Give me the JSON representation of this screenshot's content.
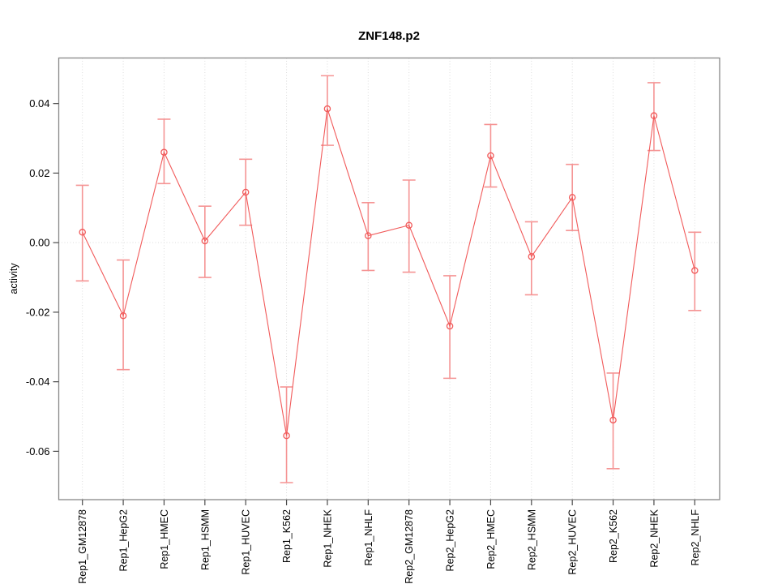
{
  "figure": {
    "background": "#ffffff"
  },
  "chart_data": {
    "type": "line",
    "title": "ZNF148.p2",
    "xlabel": "",
    "ylabel": "activity",
    "categories": [
      "Rep1_GM12878",
      "Rep1_HepG2",
      "Rep1_HMEC",
      "Rep1_HSMM",
      "Rep1_HUVEC",
      "Rep1_K562",
      "Rep1_NHEK",
      "Rep1_NHLF",
      "Rep2_GM12878",
      "Rep2_HepG2",
      "Rep2_HMEC",
      "Rep2_HSMM",
      "Rep2_HUVEC",
      "Rep2_K562",
      "Rep2_NHEK",
      "Rep2_NHLF"
    ],
    "series": [
      {
        "name": "activity",
        "marker": "open-circle",
        "values": [
          0.003,
          -0.021,
          0.026,
          0.0005,
          0.0145,
          -0.0555,
          0.0385,
          0.002,
          0.005,
          -0.024,
          0.025,
          -0.004,
          0.013,
          -0.051,
          0.0365,
          -0.008
        ],
        "ci_lower": [
          -0.011,
          -0.0365,
          0.017,
          -0.01,
          0.005,
          -0.069,
          0.028,
          -0.008,
          -0.0085,
          -0.039,
          0.016,
          -0.015,
          0.0035,
          -0.065,
          0.0265,
          -0.0195
        ],
        "ci_upper": [
          0.0165,
          -0.005,
          0.0355,
          0.0105,
          0.024,
          -0.0415,
          0.048,
          0.0115,
          0.018,
          -0.0095,
          0.034,
          0.006,
          0.0225,
          -0.0375,
          0.046,
          0.003
        ]
      }
    ],
    "y_ticks": [
      0.04,
      0.02,
      0,
      -0.02,
      -0.04,
      -0.06
    ],
    "y_tick_labels": [
      "0.04",
      "0.02",
      "0.00",
      "-0.02",
      "-0.04",
      "-0.06"
    ],
    "ylim": [
      -0.0739,
      0.0531
    ],
    "grid": "vertical dotted gridline at each category; horizontal dotted line at y=0",
    "legend": "none",
    "colors": {
      "line": "#f15a5a",
      "point": "#f15a5a",
      "error_bar": "#f59494",
      "grid": "#dcdcdc",
      "zero_line": "#dcdcdc",
      "frame": "#878787",
      "tick": "#4a4a4a",
      "text": "#000000"
    }
  }
}
